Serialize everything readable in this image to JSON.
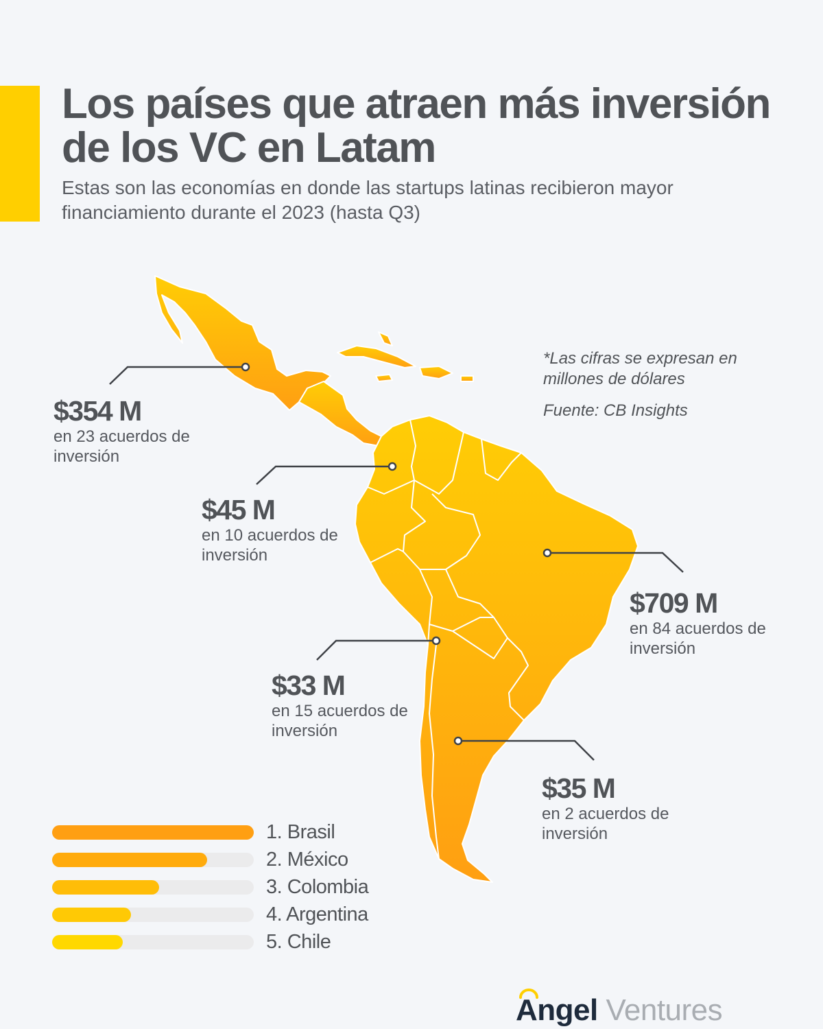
{
  "header": {
    "title": "Los países que atraen más inversión de los VC en Latam",
    "subtitle": "Estas son las economías en donde las startups latinas recibieron mayor financiamiento durante el 2023 (hasta Q3)"
  },
  "note": {
    "units": "*Las cifras se expresan en millones de dólares",
    "source": "Fuente: CB Insights"
  },
  "colors": {
    "accent": "#ffcf00",
    "map_top": "#ffcd05",
    "map_bottom": "#ff9f12",
    "text": "#505357",
    "logo_dark": "#1e2b3c",
    "logo_light": "#a9adb2"
  },
  "callouts": {
    "mexico": {
      "amount": "$354 M",
      "deals": "en 23 acuerdos de inversión"
    },
    "colombia": {
      "amount": "$45 M",
      "deals": "en 10 acuerdos de inversión"
    },
    "brasil": {
      "amount": "$709 M",
      "deals": "en 84 acuerdos de inversión"
    },
    "chile": {
      "amount": "$33 M",
      "deals": "en 15 acuerdos de inversión"
    },
    "argentina": {
      "amount": "$35 M",
      "deals": "en 2 acuerdos de inversión"
    }
  },
  "ranking": [
    {
      "label": "1. Brasil",
      "share": 1.0,
      "color": "#ff9f12"
    },
    {
      "label": "2. México",
      "share": 0.77,
      "color": "#ffab0d"
    },
    {
      "label": "3. Colombia",
      "share": 0.53,
      "color": "#ffbd08"
    },
    {
      "label": "4. Argentina",
      "share": 0.39,
      "color": "#ffc905"
    },
    {
      "label": "5. Chile",
      "share": 0.35,
      "color": "#ffd800"
    }
  ],
  "logo": {
    "part1": "Angel",
    "part2": " Ventures"
  }
}
